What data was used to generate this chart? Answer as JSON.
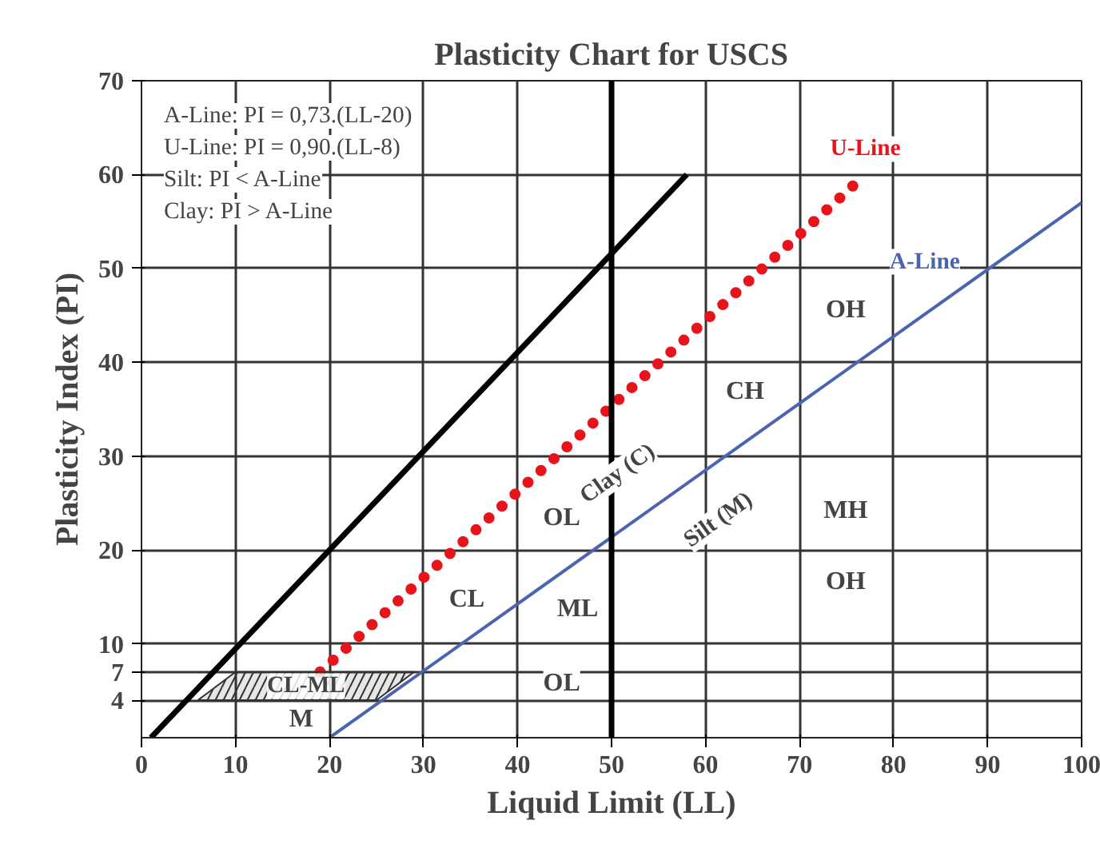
{
  "chart_data": {
    "type": "line",
    "title": "Plasticity Chart for USCS",
    "xlabel": "Liquid Limit (LL)",
    "ylabel": "Plasticity Index (PI)",
    "xlim": [
      0,
      100
    ],
    "ylim": [
      0,
      70
    ],
    "xticks": [
      0,
      10,
      20,
      30,
      40,
      50,
      60,
      70,
      80,
      90,
      100
    ],
    "yticks": [
      4,
      7,
      10,
      20,
      30,
      40,
      50,
      60,
      70
    ],
    "grid": true,
    "series": [
      {
        "color": "#000000",
        "x": [
          1,
          58
        ],
        "values": [
          0,
          60
        ]
      },
      {
        "name": "U-Line",
        "color": "#e8141c",
        "line_style": "dotted",
        "x": [
          19,
          77
        ],
        "values": [
          7,
          60
        ]
      },
      {
        "name": "A-Line",
        "color": "#4a64b0",
        "x": [
          20,
          100
        ],
        "values": [
          0,
          57
        ]
      },
      {
        "type": "area",
        "name": "CL-ML",
        "color": "#333333",
        "x": [
          6,
          10,
          29,
          25,
          6
        ],
        "values": [
          4,
          7,
          7,
          4,
          4
        ]
      }
    ],
    "ref_lines": [
      {
        "axis": "x",
        "value": 50,
        "color": "#000000"
      }
    ],
    "annotations": [
      "A-Line: PI = 0,73.(LL-20)",
      "U-Line: PI = 0,90.(LL-8)",
      "Silt: PI < A-Line",
      "Clay: PI > A-Line",
      {
        "text": "M",
        "x": 17,
        "y": 2
      },
      {
        "text": "CL",
        "x": 34.6,
        "y": 14.7
      },
      {
        "text": "OL",
        "x": 44.7,
        "y": 23.4
      },
      {
        "text": "ML",
        "x": 46.4,
        "y": 13.7
      },
      {
        "text": "OL",
        "x": 44.7,
        "y": 5.8
      },
      {
        "text": "CH",
        "x": 64.2,
        "y": 36.9
      },
      {
        "text": "OH",
        "x": 74.9,
        "y": 45.6
      },
      {
        "text": "MH",
        "x": 74.9,
        "y": 24.2
      },
      {
        "text": "OH",
        "x": 74.9,
        "y": 16.6
      },
      "Clay (C)",
      "Silt (M)"
    ]
  }
}
